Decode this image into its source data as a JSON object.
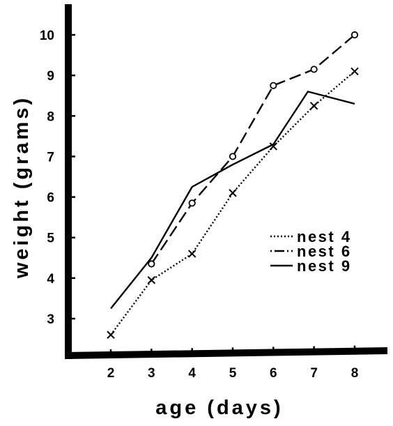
{
  "chart_data": {
    "type": "line",
    "title": "",
    "xlabel": "age (days)",
    "ylabel": "weight (grams)",
    "xlim": [
      1,
      9
    ],
    "ylim": [
      2.1,
      10.8
    ],
    "x_ticks": [
      2,
      3,
      4,
      5,
      6,
      7,
      8
    ],
    "y_ticks": [
      3,
      4,
      5,
      6,
      7,
      8,
      9,
      10
    ],
    "grid": false,
    "legend_position": "center-right",
    "series": [
      {
        "name": "nest 4",
        "line_style": "dotted",
        "marker": "x",
        "points": [
          {
            "x": 2,
            "y": 2.6
          },
          {
            "x": 3,
            "y": 3.95
          },
          {
            "x": 4,
            "y": 4.6
          },
          {
            "x": 5,
            "y": 6.1
          },
          {
            "x": 6,
            "y": 7.25
          },
          {
            "x": 7,
            "y": 8.25
          },
          {
            "x": 8,
            "y": 9.1
          }
        ]
      },
      {
        "name": "nest 6",
        "line_style": "dashed",
        "marker": "circle",
        "points": [
          {
            "x": 3,
            "y": 4.35
          },
          {
            "x": 4,
            "y": 5.85
          },
          {
            "x": 5,
            "y": 7.0
          },
          {
            "x": 6,
            "y": 8.75
          },
          {
            "x": 7,
            "y": 9.15
          },
          {
            "x": 8,
            "y": 10.0
          }
        ]
      },
      {
        "name": "nest 9",
        "line_style": "solid",
        "marker": "none",
        "points": [
          {
            "x": 2,
            "y": 3.25
          },
          {
            "x": 3,
            "y": 4.5
          },
          {
            "x": 4,
            "y": 6.25
          },
          {
            "x": 5,
            "y": 6.8
          },
          {
            "x": 6,
            "y": 7.3
          },
          {
            "x": 6.85,
            "y": 8.6
          },
          {
            "x": 8,
            "y": 8.3
          }
        ]
      }
    ]
  }
}
